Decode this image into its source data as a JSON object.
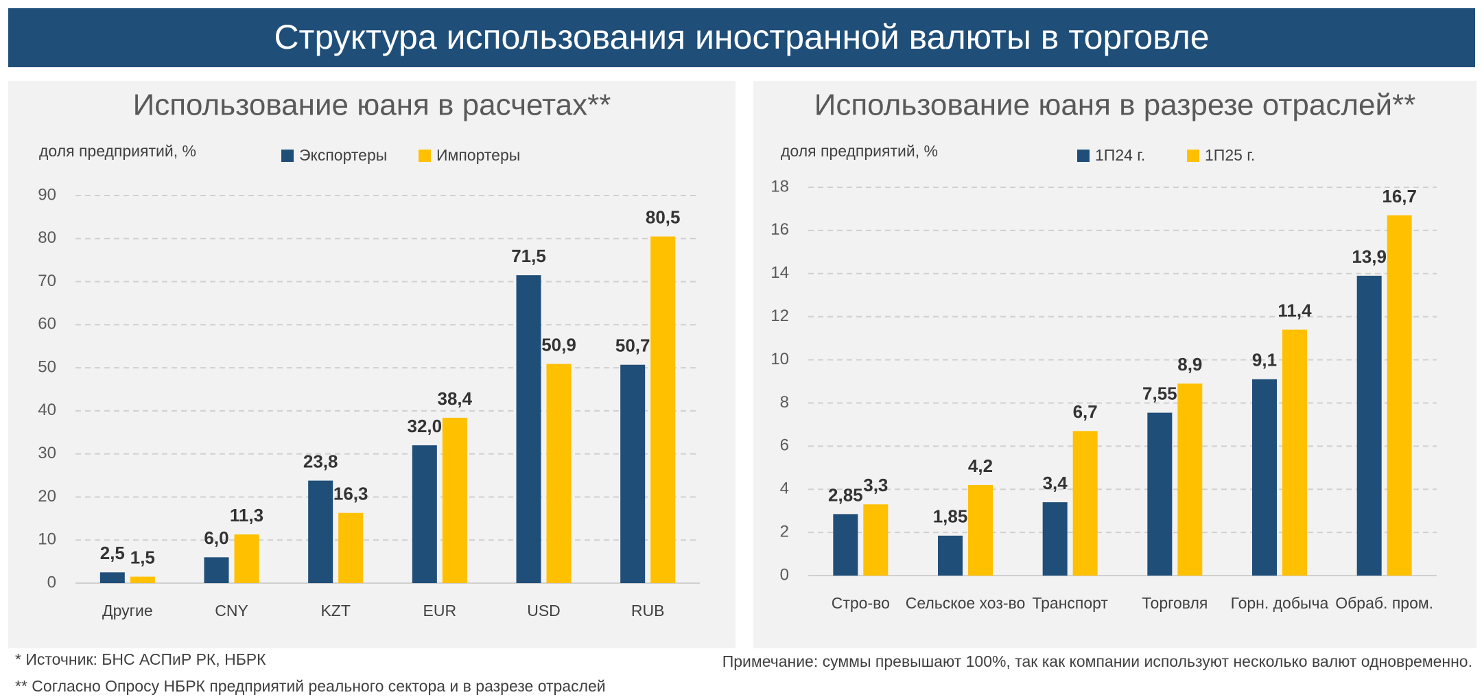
{
  "header": {
    "title": "Структура использования иностранной валюты в торговле"
  },
  "chart_data": [
    {
      "type": "bar",
      "title": "Использование юаня в расчетах**",
      "y_label": "доля предприятий, %",
      "categories": [
        "Другие",
        "CNY",
        "KZT",
        "EUR",
        "USD",
        "RUB"
      ],
      "series": [
        {
          "name": "Экспортеры",
          "color": "#1f4e79",
          "values": [
            2.5,
            6.0,
            23.8,
            32.0,
            71.5,
            50.7
          ],
          "value_labels": [
            "2,5",
            "6,0",
            "23,8",
            "32,0",
            "71,5",
            "50,7"
          ]
        },
        {
          "name": "Импортеры",
          "color": "#ffc000",
          "values": [
            1.5,
            11.3,
            16.3,
            38.4,
            50.9,
            80.5
          ],
          "value_labels": [
            "1,5",
            "11,3",
            "16,3",
            "38,4",
            "50,9",
            "80,5"
          ]
        }
      ],
      "ylim": [
        0,
        90
      ],
      "yticks": [
        0,
        10,
        20,
        30,
        40,
        50,
        60,
        70,
        80,
        90
      ],
      "grid": true
    },
    {
      "type": "bar",
      "title": "Использование юаня в разрезе отраслей**",
      "y_label": "доля предприятий, %",
      "categories": [
        "Стро-во",
        "Сельское хоз-во",
        "Транспорт",
        "Торговля",
        "Горн. добыча",
        "Обраб. пром."
      ],
      "series": [
        {
          "name": "1П24 г.",
          "color": "#1f4e79",
          "values": [
            2.85,
            1.85,
            3.4,
            7.55,
            9.1,
            13.9
          ],
          "value_labels": [
            "2,85",
            "1,85",
            "3,4",
            "7,55",
            "9,1",
            "13,9"
          ]
        },
        {
          "name": "1П25 г.",
          "color": "#ffc000",
          "values": [
            3.3,
            4.2,
            6.7,
            8.9,
            11.4,
            16.7
          ],
          "value_labels": [
            "3,3",
            "4,2",
            "6,7",
            "8,9",
            "11,4",
            "16,7"
          ]
        }
      ],
      "ylim": [
        0,
        18
      ],
      "yticks": [
        0,
        2,
        4,
        6,
        8,
        10,
        12,
        14,
        16,
        18
      ],
      "grid": true
    }
  ],
  "footnotes": [
    "* Источник: БНС АСПиР РК, НБРК",
    "** Согласно Опросу НБРК предприятий реального сектора и в разрезе отраслей"
  ],
  "note": "Примечание: суммы превышают 100%, так как компании используют несколько валют одновременно."
}
